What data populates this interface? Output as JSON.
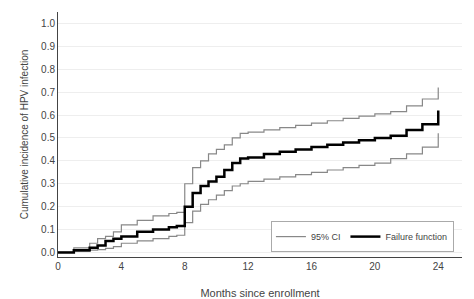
{
  "chart_data": {
    "type": "step",
    "xlabel": "Months since enrollment",
    "ylabel": "Cumulative incidence of HPV infection",
    "xlim": [
      0,
      25.5
    ],
    "ylim": [
      -0.02,
      1.05
    ],
    "xticks": [
      0,
      4,
      8,
      12,
      16,
      20,
      24
    ],
    "yticks": [
      {
        "value": 0.0,
        "label": "0.0"
      },
      0.1,
      0.2,
      0.3,
      0.4,
      0.5,
      0.6,
      0.7,
      0.8,
      0.9,
      {
        "value": 1.0,
        "label": "1.0"
      }
    ],
    "grid": "y",
    "legend": "lower right",
    "series": [
      {
        "name": "95% CI",
        "color": "#888888",
        "x": [
          0,
          1,
          2,
          2.5,
          3,
          3.5,
          4,
          5,
          6,
          7,
          7.5,
          8,
          8.5,
          9,
          9.5,
          10,
          10.5,
          11,
          11.5,
          12,
          13,
          14,
          15,
          16,
          17,
          18,
          19,
          20,
          21,
          22,
          23,
          24
        ],
        "values": [
          0,
          0.02,
          0.04,
          0.06,
          0.07,
          0.09,
          0.12,
          0.14,
          0.16,
          0.17,
          0.175,
          0.3,
          0.37,
          0.4,
          0.43,
          0.45,
          0.47,
          0.5,
          0.52,
          0.525,
          0.535,
          0.545,
          0.555,
          0.565,
          0.575,
          0.585,
          0.595,
          0.605,
          0.615,
          0.64,
          0.67,
          0.72
        ]
      },
      {
        "name": "95% CI",
        "color": "#888888",
        "x": [
          0,
          1,
          2,
          2.5,
          3,
          3.5,
          4,
          5,
          6,
          7,
          7.5,
          8,
          8.5,
          9,
          9.5,
          10,
          10.5,
          11,
          11.5,
          12,
          13,
          14,
          15,
          16,
          17,
          18,
          19,
          20,
          21,
          22,
          23,
          24
        ],
        "values": [
          0,
          0.005,
          0.01,
          0.012,
          0.018,
          0.025,
          0.04,
          0.05,
          0.06,
          0.07,
          0.075,
          0.13,
          0.18,
          0.21,
          0.23,
          0.25,
          0.27,
          0.29,
          0.3,
          0.31,
          0.32,
          0.33,
          0.34,
          0.35,
          0.36,
          0.37,
          0.38,
          0.39,
          0.41,
          0.43,
          0.46,
          0.52
        ]
      },
      {
        "name": "Failure function",
        "color": "#000000",
        "x": [
          0,
          1,
          2,
          2.5,
          3,
          3.5,
          4,
          5,
          6,
          7,
          7.5,
          8,
          8.5,
          9,
          9.5,
          10,
          10.5,
          11,
          11.5,
          12,
          13,
          14,
          15,
          16,
          17,
          18,
          19,
          20,
          21,
          22,
          23,
          24
        ],
        "values": [
          0,
          0.01,
          0.02,
          0.03,
          0.05,
          0.06,
          0.07,
          0.09,
          0.1,
          0.11,
          0.115,
          0.2,
          0.26,
          0.29,
          0.31,
          0.33,
          0.36,
          0.39,
          0.41,
          0.415,
          0.43,
          0.44,
          0.45,
          0.46,
          0.47,
          0.48,
          0.49,
          0.5,
          0.51,
          0.535,
          0.56,
          0.62
        ]
      }
    ]
  }
}
